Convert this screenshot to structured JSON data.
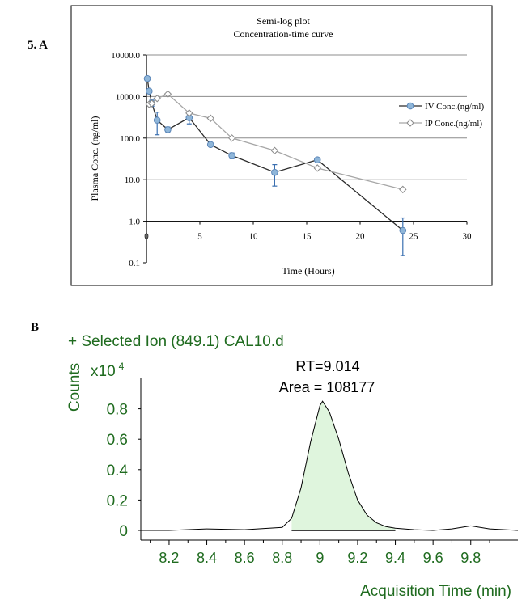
{
  "panel_labels": {
    "a": "5. A",
    "b": "B"
  },
  "chart_data": [
    {
      "type": "line",
      "title": "Semi-log plot",
      "subtitle": "Concentration-time curve",
      "xlabel": "Time (Hours)",
      "ylabel": "Plasma Conc. (ng/ml)",
      "xlim": [
        0,
        30
      ],
      "ylim": [
        0.1,
        10000
      ],
      "yscale": "log",
      "grid": true,
      "legend_position": "right",
      "x_ticks": [
        "0",
        "5",
        "10",
        "15",
        "20",
        "25",
        "30"
      ],
      "y_ticks": [
        "10000.0",
        "1000.0",
        "100.0",
        "10.0",
        "1.0",
        "0.1"
      ],
      "series": [
        {
          "name": "IV Conc.(ng/ml)",
          "color": "#2b2b2b",
          "marker": "circle",
          "marker_color": "#8fb6d9",
          "x": [
            0.08,
            0.25,
            0.5,
            1,
            2,
            4,
            6,
            8,
            12,
            16,
            24
          ],
          "y": [
            2700,
            1350,
            700,
            270,
            160,
            310,
            70,
            38,
            15,
            30,
            0.6
          ],
          "err": [
            0,
            0,
            120,
            150,
            25,
            90,
            0,
            6,
            8,
            0,
            0.6
          ]
        },
        {
          "name": "IP Conc.(ng/ml)",
          "color": "#a6a6a6",
          "marker": "diamond",
          "marker_color": "#ffffff",
          "x": [
            0.25,
            0.5,
            1,
            2,
            4,
            6,
            8,
            12,
            16,
            24
          ],
          "y": [
            650,
            680,
            900,
            1150,
            400,
            300,
            100,
            50,
            19,
            5.8
          ]
        }
      ]
    },
    {
      "type": "area",
      "title": "+ Selected Ion (849.1) CAL10.d",
      "xlabel": "Acquisition Time (min)",
      "ylabel": "Counts",
      "yscale_label": "x10",
      "yscale_exponent": "4",
      "xlim": [
        8.05,
        10.05
      ],
      "ylim": [
        0,
        1.0
      ],
      "x_ticks": [
        "8.2",
        "8.4",
        "8.6",
        "8.8",
        "9",
        "9.2",
        "9.4",
        "9.6",
        "9.8"
      ],
      "y_ticks": [
        "0",
        "0.2",
        "0.4",
        "0.6",
        "0.8"
      ],
      "annotations": [
        "RT=9.014",
        "Area = 108177"
      ],
      "peak": {
        "rt": 9.014,
        "height": 0.85,
        "fill": "#dff5dd"
      },
      "colors": {
        "text": "#1f6b1f",
        "line": "#000000"
      },
      "series": [
        {
          "x": [
            8.05,
            8.2,
            8.4,
            8.6,
            8.8,
            8.85,
            8.9,
            8.95,
            9.0,
            9.014,
            9.05,
            9.1,
            9.15,
            9.2,
            9.25,
            9.3,
            9.35,
            9.4,
            9.5,
            9.6,
            9.7,
            9.8,
            9.9,
            10.05
          ],
          "y": [
            0.0,
            0.0,
            0.01,
            0.005,
            0.02,
            0.08,
            0.28,
            0.58,
            0.82,
            0.85,
            0.78,
            0.6,
            0.38,
            0.2,
            0.1,
            0.05,
            0.025,
            0.015,
            0.005,
            0.0,
            0.01,
            0.03,
            0.01,
            0.0
          ]
        }
      ]
    }
  ]
}
